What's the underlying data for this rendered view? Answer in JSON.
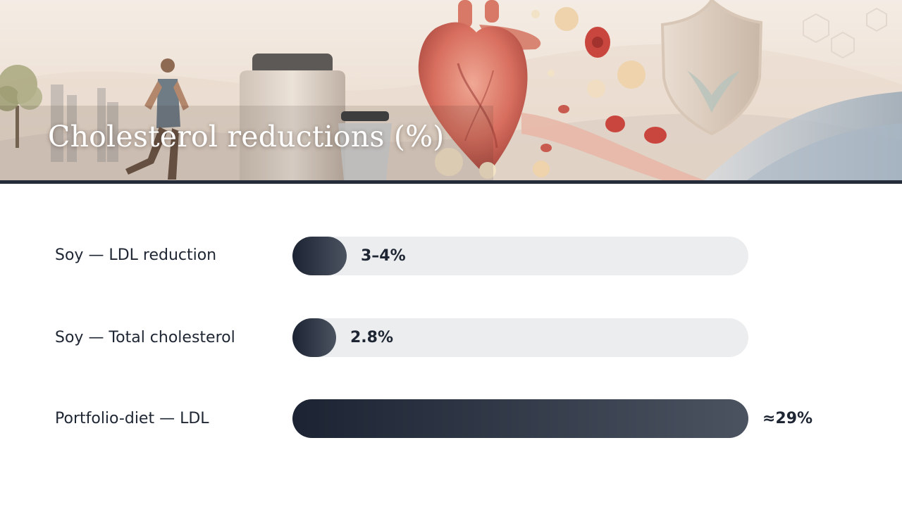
{
  "header": {
    "title": "Cholesterol reductions (%)"
  },
  "chart_data": {
    "type": "bar",
    "orientation": "horizontal",
    "title": "Cholesterol reductions (%)",
    "categories": [
      "Soy — LDL reduction",
      "Soy — Total cholesterol",
      "Portfolio-diet — LDL"
    ],
    "values": [
      3.5,
      2.8,
      29
    ],
    "value_labels": [
      "3–4%",
      "2.8%",
      "≈29%"
    ],
    "xlim": [
      0,
      29
    ],
    "grid": false,
    "legend": "none",
    "colors": {
      "bar_start": "#1c2433",
      "bar_end": "#4b5361",
      "track": "#ecedef",
      "accent": "#262d3a"
    }
  }
}
